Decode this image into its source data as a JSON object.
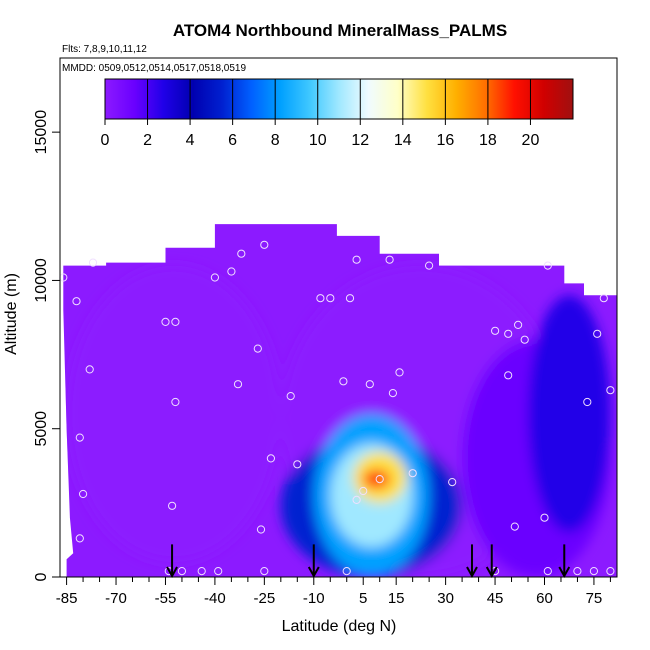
{
  "chart_data": {
    "type": "heatmap",
    "title": "ATOM4 Northbound MineralMass_PALMS",
    "flights_note": "Flts: 7,8,9,10,11,12",
    "dates_note": "MMDD: 0509,0512,0514,0517,0518,0519",
    "xlabel": "Latitude (deg N)",
    "ylabel": "Altitude (m)",
    "xlim": [
      -87,
      82
    ],
    "ylim": [
      0,
      17500
    ],
    "x_ticks": [
      -85,
      -70,
      -55,
      -40,
      -25,
      -10,
      5,
      15,
      30,
      45,
      60,
      75
    ],
    "x_minor_ticks": [
      -80,
      -75,
      -65,
      -60,
      -50,
      -45,
      -35,
      -30,
      -20,
      -15,
      -5,
      0,
      10,
      20,
      25,
      35,
      40,
      50,
      55,
      65,
      70,
      80
    ],
    "x_tick_labels": [
      "-85",
      "-70",
      "-55",
      "-40",
      "-25",
      "-10",
      "5",
      "15",
      "30",
      "45",
      "60",
      "75"
    ],
    "y_ticks": [
      0,
      5000,
      10000,
      15000
    ],
    "y_tick_labels": [
      "0",
      "5000",
      "10000",
      "15000"
    ],
    "colorbar": {
      "min": 0,
      "max": 22,
      "ticks": [
        0,
        2,
        4,
        6,
        8,
        10,
        12,
        14,
        16,
        18,
        20
      ],
      "tick_labels": [
        "0",
        "2",
        "4",
        "6",
        "8",
        "10",
        "12",
        "14",
        "16",
        "18",
        "20"
      ],
      "colors": [
        "#8c1aff",
        "#6a00ff",
        "#2000e8",
        "#0000b0",
        "#0020d0",
        "#0060ff",
        "#00a0ff",
        "#40c8ff",
        "#a0e8ff",
        "#f0fbff",
        "#ffffc8",
        "#ffe040",
        "#ffb000",
        "#ff7000",
        "#ff1000",
        "#d00000",
        "#a01010"
      ]
    },
    "field_regions": [
      {
        "x": [
          -85,
          -20
        ],
        "y": [
          500,
          10500
        ],
        "value": 0.5
      },
      {
        "x": [
          -20,
          65
        ],
        "y": [
          0,
          10500
        ],
        "value": 0.6
      },
      {
        "x": [
          35,
          80
        ],
        "y": [
          0,
          8000
        ],
        "value": 2.5
      },
      {
        "x": [
          55,
          80
        ],
        "y": [
          1500,
          9500
        ],
        "value": 3.0
      },
      {
        "x": [
          -20,
          35
        ],
        "y": [
          0,
          4800
        ],
        "value": 6.0
      },
      {
        "x": [
          -10,
          25
        ],
        "y": [
          0,
          5500
        ],
        "value": 8.0
      },
      {
        "x": [
          -5,
          20
        ],
        "y": [
          1000,
          4500
        ],
        "value": 10.5
      },
      {
        "x": [
          2,
          18
        ],
        "y": [
          2500,
          4200
        ],
        "value": 14.5
      },
      {
        "x": [
          5,
          13
        ],
        "y": [
          3000,
          3600
        ],
        "value": 19.0
      }
    ],
    "sample_points": [
      {
        "x": -86,
        "y": 10100
      },
      {
        "x": -77,
        "y": 10600
      },
      {
        "x": -82,
        "y": 9300
      },
      {
        "x": -78,
        "y": 7000
      },
      {
        "x": -81,
        "y": 4700
      },
      {
        "x": -80,
        "y": 2800
      },
      {
        "x": -81,
        "y": 1300
      },
      {
        "x": -53,
        "y": 2400
      },
      {
        "x": -55,
        "y": 8600
      },
      {
        "x": -52,
        "y": 8600
      },
      {
        "x": -52,
        "y": 5900
      },
      {
        "x": -40,
        "y": 10100
      },
      {
        "x": -35,
        "y": 10300
      },
      {
        "x": -32,
        "y": 10900
      },
      {
        "x": -25,
        "y": 11200
      },
      {
        "x": -27,
        "y": 7700
      },
      {
        "x": -33,
        "y": 6500
      },
      {
        "x": -23,
        "y": 4000
      },
      {
        "x": -26,
        "y": 1600
      },
      {
        "x": -17,
        "y": 6100
      },
      {
        "x": -15,
        "y": 3800
      },
      {
        "x": -8,
        "y": 9400
      },
      {
        "x": -5,
        "y": 9400
      },
      {
        "x": 1,
        "y": 9400
      },
      {
        "x": -1,
        "y": 6600
      },
      {
        "x": 7,
        "y": 6500
      },
      {
        "x": 3,
        "y": 10700
      },
      {
        "x": 13,
        "y": 10700
      },
      {
        "x": 16,
        "y": 6900
      },
      {
        "x": 14,
        "y": 6200
      },
      {
        "x": 25,
        "y": 10500
      },
      {
        "x": 20,
        "y": 3500
      },
      {
        "x": 10,
        "y": 3300
      },
      {
        "x": 5,
        "y": 2900
      },
      {
        "x": 3,
        "y": 2600
      },
      {
        "x": 32,
        "y": 3200
      },
      {
        "x": 45,
        "y": 8300
      },
      {
        "x": 49,
        "y": 8200
      },
      {
        "x": 52,
        "y": 8500
      },
      {
        "x": 54,
        "y": 8000
      },
      {
        "x": 49,
        "y": 6800
      },
      {
        "x": 61,
        "y": 10500
      },
      {
        "x": 76,
        "y": 8200
      },
      {
        "x": 73,
        "y": 5900
      },
      {
        "x": 78,
        "y": 9400
      },
      {
        "x": 80,
        "y": 6300
      },
      {
        "x": 51,
        "y": 1700
      },
      {
        "x": 60,
        "y": 2000
      },
      {
        "x": -54,
        "y": 200
      },
      {
        "x": -50,
        "y": 200
      },
      {
        "x": -44,
        "y": 200
      },
      {
        "x": -39,
        "y": 200
      },
      {
        "x": -25,
        "y": 200
      },
      {
        "x": 0,
        "y": 200
      },
      {
        "x": 45,
        "y": 200
      },
      {
        "x": 61,
        "y": 200
      },
      {
        "x": 70,
        "y": 200
      },
      {
        "x": 75,
        "y": 200
      },
      {
        "x": 80,
        "y": 200
      }
    ],
    "arrows_at_latitude": [
      -53,
      -10,
      38,
      44,
      66
    ],
    "grid": false
  }
}
